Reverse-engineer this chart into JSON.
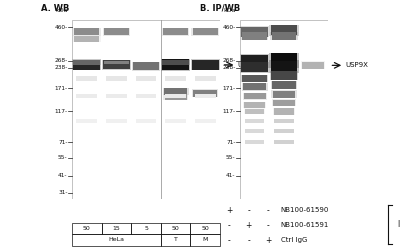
{
  "panel_A_title": "A. WB",
  "panel_B_title": "B. IP/WB",
  "kda_label": "kDa",
  "marker_kda_A": [
    460,
    268,
    238,
    171,
    117,
    71,
    55,
    41,
    31
  ],
  "marker_labels_A": [
    "460-",
    "268-",
    "238-",
    "171-",
    "117-",
    "71-",
    "55-",
    "41-",
    "31-"
  ],
  "marker_kda_B": [
    460,
    268,
    238,
    171,
    117,
    71,
    55,
    41
  ],
  "marker_labels_B": [
    "460-",
    "268-",
    "238-",
    "171-",
    "117-",
    "71-",
    "55-",
    "41-"
  ],
  "sample_labels_A": [
    "50",
    "15",
    "5",
    "50",
    "50"
  ],
  "legend_rows": [
    [
      "+",
      "-",
      "-",
      "NB100-61590"
    ],
    [
      "-",
      "+",
      "-",
      "NB100-61591"
    ],
    [
      "-",
      "-",
      "+",
      "Ctrl IgG"
    ]
  ],
  "legend_ip_label": "IP",
  "bg_light": "#f0eeea",
  "bg_blot_A": "#dddad4",
  "bg_blot_B": "#dddad4",
  "band_dark": "#222222",
  "band_med": "#666666",
  "band_light": "#aaaaaa",
  "text_color": "#111111",
  "white": "#ffffff",
  "vmin_kda": 28,
  "vmax_kda": 520
}
